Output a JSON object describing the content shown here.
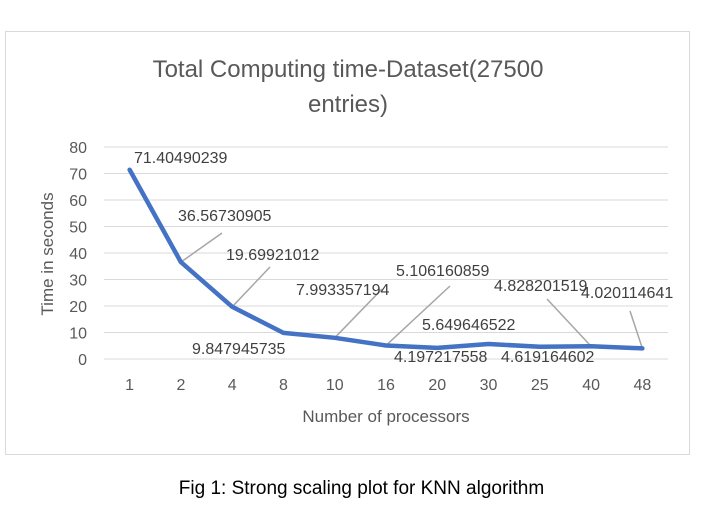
{
  "chart_data": {
    "type": "line",
    "title_line1": "Total Computing time-Dataset(27500",
    "title_line2": "entries)",
    "xlabel": "Number of processors",
    "ylabel": "Time in seconds",
    "categories": [
      "1",
      "2",
      "4",
      "8",
      "10",
      "16",
      "20",
      "30",
      "25",
      "40",
      "48"
    ],
    "series": [
      {
        "values": [
          71.40490239,
          36.56730905,
          19.69921012,
          9.847945735,
          7.993357194,
          5.106160859,
          4.197217558,
          5.649646522,
          4.619164602,
          4.828201519,
          4.020114641
        ]
      }
    ],
    "data_labels": [
      "71.40490239",
      "36.56730905",
      "19.69921012",
      "9.847945735",
      "7.993357194",
      "5.106160859",
      "4.197217558",
      "5.649646522",
      "4.619164602",
      "4.828201519",
      "4.020114641"
    ],
    "ylim": [
      0,
      80
    ],
    "yticks": [
      0,
      10,
      20,
      30,
      40,
      50,
      60,
      70,
      80
    ],
    "grid": true,
    "line_color": "#4472c4"
  },
  "caption": "Fig 1: Strong scaling plot for KNN algorithm"
}
